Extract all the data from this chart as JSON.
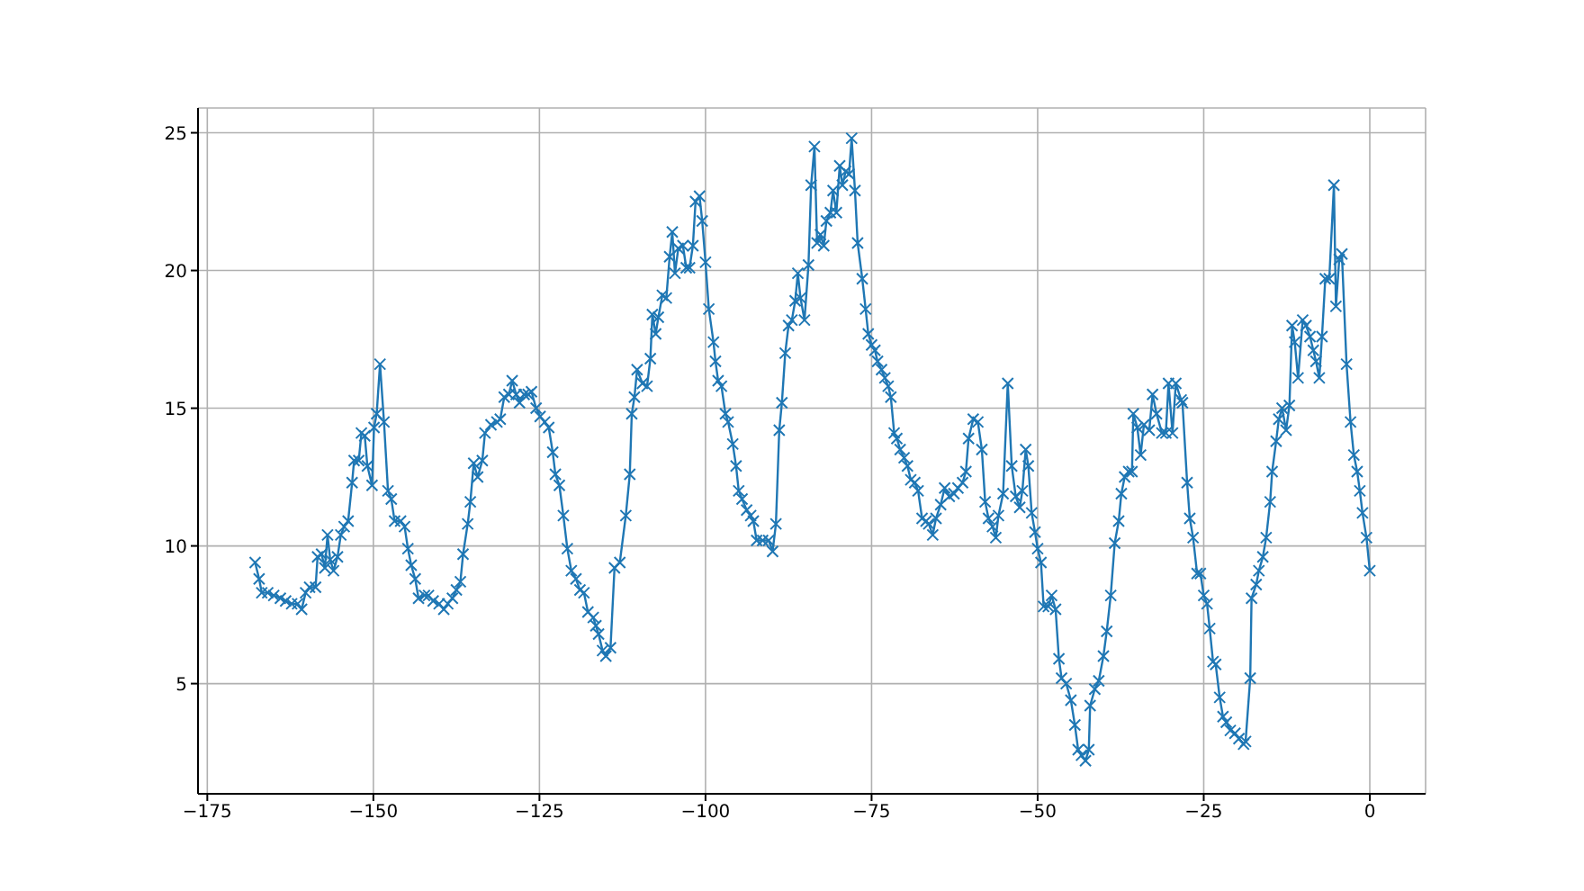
{
  "chart_data": {
    "type": "line",
    "marker": "cross",
    "line_style": "solid",
    "grid": true,
    "xlim": [
      -176.4,
      8.4
    ],
    "xticks": [
      -175,
      -150,
      -125,
      -100,
      -75,
      -50,
      -25,
      0
    ],
    "ylim": [
      1.0,
      25.9
    ],
    "yticks": [
      5,
      10,
      15,
      20,
      25
    ],
    "series": [
      {
        "color": "#1f77b4",
        "x": [
          -167.8,
          -167.2,
          -166.8,
          -165.9,
          -165,
          -164,
          -163.2,
          -162.3,
          -161.4,
          -160.8,
          -160.2,
          -159.6,
          -158.7,
          -158.4,
          -157.8,
          -157.3,
          -156.9,
          -156.5,
          -156,
          -155.4,
          -154.9,
          -154.4,
          -153.8,
          -153.2,
          -152.9,
          -152.2,
          -151.8,
          -151.3,
          -150.9,
          -150.2,
          -149.9,
          -149.5,
          -149,
          -148.4,
          -147.8,
          -147.3,
          -146.8,
          -145.9,
          -145.3,
          -144.8,
          -144.3,
          -143.7,
          -143.2,
          -142.3,
          -141.7,
          -141,
          -140.1,
          -139.4,
          -138.8,
          -138.1,
          -137.5,
          -136.9,
          -136.5,
          -135.8,
          -135.4,
          -134.9,
          -134.3,
          -133.6,
          -133.2,
          -132.3,
          -131.4,
          -130.9,
          -130.3,
          -129.6,
          -129.1,
          -128.5,
          -128,
          -127.3,
          -126.7,
          -126.2,
          -125.5,
          -124.9,
          -124.2,
          -123.6,
          -123,
          -122.6,
          -122,
          -121.4,
          -120.8,
          -120.2,
          -119.5,
          -118.9,
          -118.3,
          -117.7,
          -116.9,
          -116.5,
          -116.1,
          -115.5,
          -115,
          -114.3,
          -113.7,
          -112.9,
          -112,
          -111.4,
          -111.1,
          -110.7,
          -110.3,
          -109.5,
          -108.8,
          -108.3,
          -108,
          -107.5,
          -107.1,
          -106.5,
          -105.9,
          -105.4,
          -105,
          -104.6,
          -104.1,
          -103.4,
          -102.9,
          -102.4,
          -101.9,
          -101.5,
          -100.9,
          -100.5,
          -100,
          -99.5,
          -98.8,
          -98.5,
          -98.1,
          -97.6,
          -97,
          -96.6,
          -95.9,
          -95.4,
          -95,
          -94.5,
          -93.8,
          -93.2,
          -92.8,
          -92.3,
          -91.4,
          -90.5,
          -89.9,
          -89.4,
          -88.9,
          -88.5,
          -88,
          -87.5,
          -87,
          -86.5,
          -86.1,
          -85.7,
          -85.1,
          -84.5,
          -84.1,
          -83.6,
          -83.2,
          -82.7,
          -82.2,
          -81.8,
          -81.2,
          -80.8,
          -80.3,
          -79.8,
          -79.4,
          -78.9,
          -78.4,
          -78,
          -77.5,
          -77.1,
          -76.4,
          -75.9,
          -75.5,
          -75,
          -74.5,
          -74.1,
          -73.5,
          -73,
          -72.5,
          -72.1,
          -71.6,
          -71.2,
          -70.7,
          -70.1,
          -69.6,
          -69.1,
          -68.5,
          -68,
          -67.4,
          -66.8,
          -66.4,
          -65.8,
          -65.3,
          -64.6,
          -64,
          -63.3,
          -62.6,
          -62,
          -61.3,
          -60.8,
          -60.4,
          -59.7,
          -59,
          -58.4,
          -57.9,
          -57.4,
          -56.8,
          -56.3,
          -55.9,
          -55.2,
          -54.5,
          -53.9,
          -53.3,
          -52.7,
          -52.3,
          -51.8,
          -51.4,
          -50.9,
          -50.4,
          -50,
          -49.5,
          -49.1,
          -48.4,
          -47.9,
          -47.3,
          -46.8,
          -46.4,
          -45.7,
          -45,
          -44.4,
          -43.9,
          -43.4,
          -42.8,
          -42.3,
          -42.1,
          -41.4,
          -40.8,
          -40.1,
          -39.6,
          -39,
          -38.4,
          -37.8,
          -37.4,
          -36.9,
          -36.3,
          -35.8,
          -35.6,
          -35,
          -34.5,
          -34,
          -33.2,
          -32.7,
          -32.1,
          -31.3,
          -30.7,
          -30.3,
          -29.7,
          -29.2,
          -28.4,
          -28.2,
          -27.5,
          -27.1,
          -26.6,
          -26,
          -25.5,
          -25,
          -24.5,
          -24.1,
          -23.6,
          -23.2,
          -22.6,
          -22.1,
          -21.6,
          -21,
          -20.3,
          -19.7,
          -19,
          -18.7,
          -18,
          -17.8,
          -17.1,
          -16.7,
          -16.1,
          -15.6,
          -15,
          -14.7,
          -14.1,
          -13.7,
          -13.2,
          -12.6,
          -12.1,
          -11.7,
          -11.3,
          -10.8,
          -10.1,
          -9.6,
          -9,
          -8.5,
          -8.1,
          -7.6,
          -7.2,
          -6.7,
          -6.1,
          -5.4,
          -5.1,
          -4.6,
          -4.2,
          -3.5,
          -2.9,
          -2.4,
          -1.9,
          -1.5,
          -1.1,
          -0.5,
          0
        ],
        "values": [
          9.4,
          8.8,
          8.3,
          8.3,
          8.2,
          8.1,
          8.0,
          7.9,
          7.9,
          7.7,
          8.3,
          8.5,
          8.5,
          9.6,
          9.7,
          9.2,
          10.4,
          9.5,
          9.1,
          9.6,
          10.4,
          10.7,
          10.9,
          12.3,
          13.1,
          13.1,
          14.1,
          14.0,
          12.9,
          12.2,
          14.3,
          14.8,
          16.6,
          14.5,
          12.0,
          11.7,
          10.9,
          10.9,
          10.7,
          9.9,
          9.3,
          8.8,
          8.1,
          8.2,
          8.2,
          8.0,
          7.9,
          7.7,
          7.9,
          8.1,
          8.4,
          8.7,
          9.7,
          10.8,
          11.6,
          13.0,
          12.5,
          13.1,
          14.1,
          14.4,
          14.5,
          14.6,
          15.4,
          15.5,
          16.0,
          15.5,
          15.2,
          15.5,
          15.5,
          15.6,
          15.0,
          14.7,
          14.5,
          14.3,
          13.4,
          12.6,
          12.2,
          11.1,
          9.9,
          9.1,
          8.8,
          8.4,
          8.3,
          7.6,
          7.4,
          7.1,
          6.8,
          6.2,
          6.0,
          6.3,
          9.2,
          9.4,
          11.1,
          12.6,
          14.8,
          15.4,
          16.4,
          15.9,
          15.8,
          16.8,
          18.4,
          17.7,
          18.3,
          19.1,
          19.0,
          20.5,
          21.4,
          19.9,
          20.8,
          20.9,
          20.1,
          20.1,
          20.9,
          22.5,
          22.7,
          21.8,
          20.3,
          18.6,
          17.4,
          16.7,
          16.0,
          15.8,
          14.8,
          14.5,
          13.7,
          12.9,
          12.0,
          11.7,
          11.3,
          11.1,
          10.9,
          10.2,
          10.2,
          10.2,
          9.8,
          10.8,
          14.2,
          15.2,
          17.0,
          18.0,
          18.2,
          18.9,
          19.9,
          19.0,
          18.2,
          20.2,
          23.1,
          24.5,
          21.0,
          21.3,
          20.9,
          21.8,
          22.1,
          22.9,
          22.1,
          23.8,
          23.1,
          23.6,
          23.5,
          24.8,
          22.9,
          21.0,
          19.7,
          18.6,
          17.7,
          17.3,
          17.1,
          16.7,
          16.4,
          16.1,
          15.8,
          15.4,
          14.1,
          13.9,
          13.5,
          13.2,
          12.9,
          12.4,
          12.3,
          12.0,
          11.0,
          10.9,
          10.8,
          10.4,
          11.0,
          11.5,
          12.1,
          11.8,
          11.9,
          12.1,
          12.3,
          12.7,
          13.9,
          14.6,
          14.5,
          13.5,
          11.6,
          11.0,
          10.7,
          10.3,
          11.1,
          11.9,
          15.9,
          12.9,
          11.8,
          11.4,
          12.0,
          13.5,
          12.9,
          11.2,
          10.5,
          9.9,
          9.4,
          7.8,
          7.8,
          8.2,
          7.7,
          5.9,
          5.2,
          5.0,
          4.4,
          3.5,
          2.6,
          2.4,
          2.2,
          2.6,
          4.2,
          4.8,
          5.1,
          6.0,
          6.9,
          8.2,
          10.1,
          10.9,
          11.9,
          12.5,
          12.7,
          12.7,
          14.8,
          14.3,
          13.3,
          14.4,
          14.2,
          15.5,
          14.8,
          14.1,
          14.1,
          15.9,
          14.1,
          15.9,
          15.3,
          15.2,
          12.3,
          11.0,
          10.3,
          9.0,
          9.0,
          8.2,
          7.9,
          7.0,
          5.8,
          5.7,
          4.5,
          3.8,
          3.6,
          3.3,
          3.2,
          3.0,
          2.8,
          2.9,
          5.2,
          8.1,
          8.6,
          9.1,
          9.6,
          10.3,
          11.6,
          12.7,
          13.8,
          14.6,
          15.0,
          14.2,
          15.1,
          18.0,
          17.4,
          16.1,
          18.2,
          18.0,
          17.6,
          17.1,
          16.7,
          16.1,
          17.6,
          19.7,
          19.7,
          23.1,
          18.7,
          20.4,
          20.6,
          16.6,
          14.5,
          13.3,
          12.7,
          12.0,
          11.2,
          10.3,
          9.1
        ]
      }
    ]
  }
}
